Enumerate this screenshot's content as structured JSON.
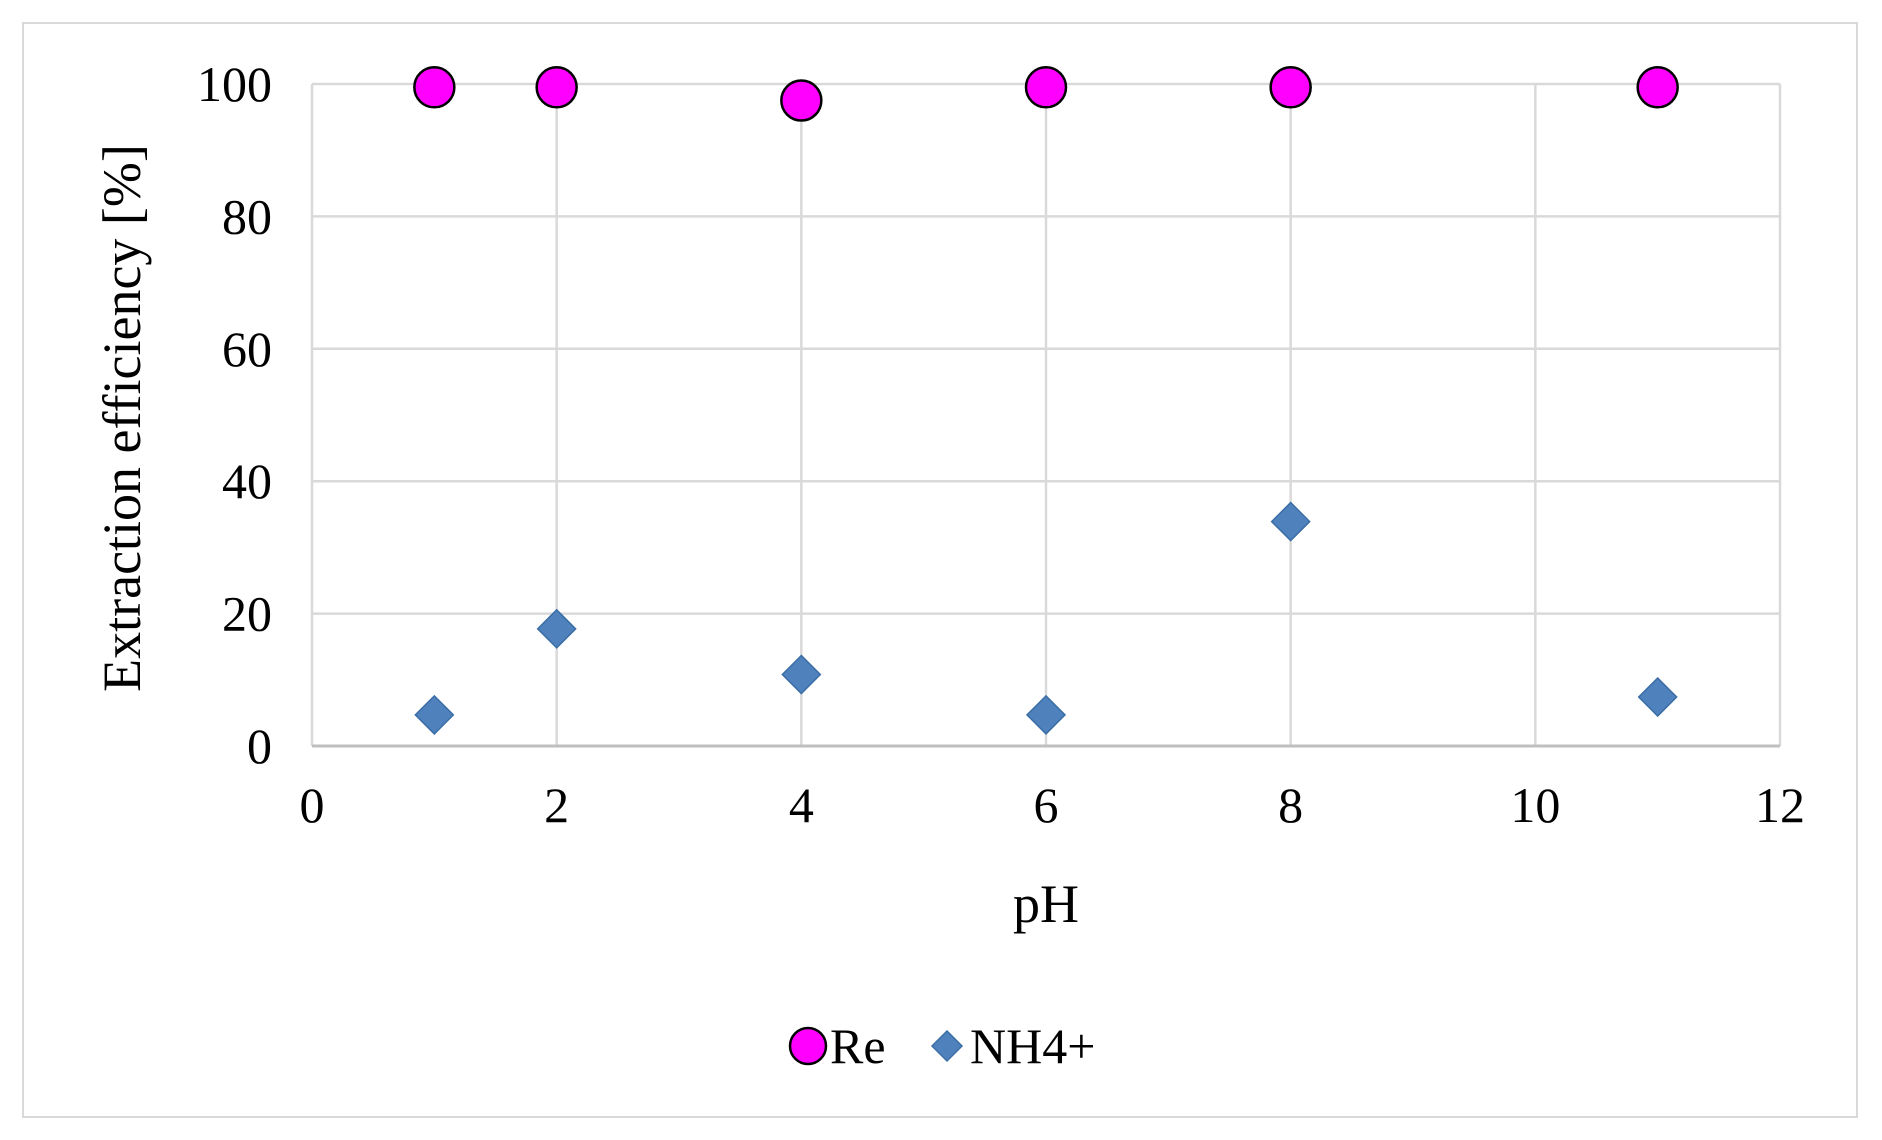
{
  "chart_data": {
    "type": "scatter",
    "title": "",
    "xlabel": "pH",
    "ylabel": "Extraction efficiency  [%]",
    "xlim": [
      0,
      12
    ],
    "ylim": [
      0,
      100
    ],
    "x_ticks": [
      0,
      2,
      4,
      6,
      8,
      10,
      12
    ],
    "y_ticks": [
      0,
      20,
      40,
      60,
      80,
      100
    ],
    "grid": true,
    "legend_position": "bottom",
    "series": [
      {
        "name": "Re",
        "marker": "circle",
        "color": "#ff00ff",
        "points": [
          {
            "x": 1,
            "y": 99.5
          },
          {
            "x": 2,
            "y": 99.5
          },
          {
            "x": 4,
            "y": 97.5
          },
          {
            "x": 6,
            "y": 99.5
          },
          {
            "x": 8,
            "y": 99.5
          },
          {
            "x": 11,
            "y": 99.5
          }
        ]
      },
      {
        "name": "NH4+",
        "marker": "diamond",
        "color": "#4f81bd",
        "points": [
          {
            "x": 1,
            "y": 4.7
          },
          {
            "x": 2,
            "y": 17.7
          },
          {
            "x": 4,
            "y": 10.8
          },
          {
            "x": 6,
            "y": 4.7
          },
          {
            "x": 8,
            "y": 33.9
          },
          {
            "x": 11,
            "y": 7.4
          }
        ]
      }
    ]
  }
}
